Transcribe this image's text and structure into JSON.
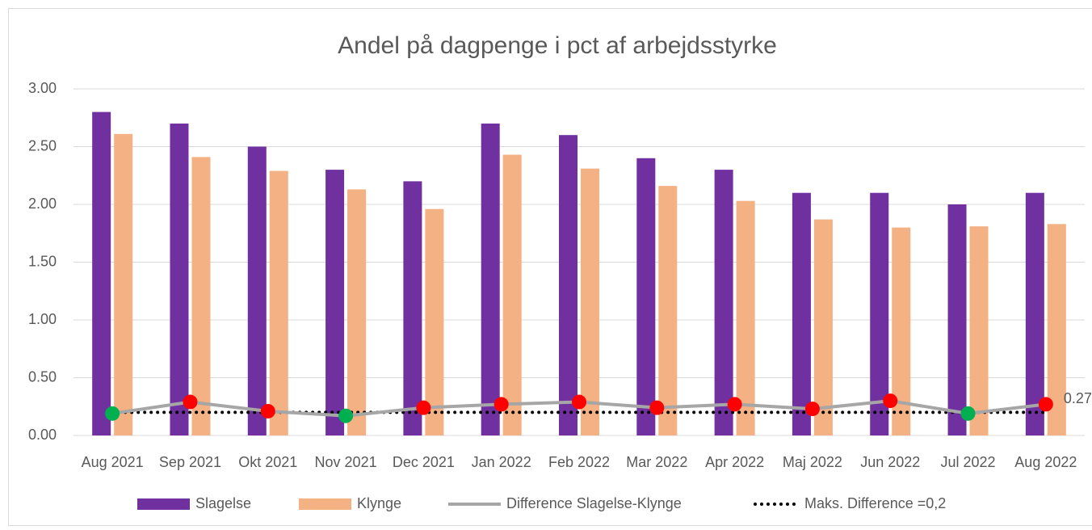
{
  "chart_data": {
    "type": "bar_line",
    "title": "Andel på dagpenge i pct af arbejdsstyrke",
    "categories": [
      "Aug 2021",
      "Sep 2021",
      "Okt 2021",
      "Nov 2021",
      "Dec 2021",
      "Jan 2022",
      "Feb 2022",
      "Mar 2022",
      "Apr 2022",
      "Maj 2022",
      "Jun 2022",
      "Jul 2022",
      "Aug 2022"
    ],
    "series": [
      {
        "name": "Slagelse",
        "kind": "bar",
        "color": "#7030a0",
        "values": [
          2.8,
          2.7,
          2.5,
          2.3,
          2.2,
          2.7,
          2.6,
          2.4,
          2.3,
          2.1,
          2.1,
          2.0,
          2.1
        ]
      },
      {
        "name": "Klynge",
        "kind": "bar",
        "color": "#f4b183",
        "values": [
          2.61,
          2.41,
          2.29,
          2.13,
          1.96,
          2.43,
          2.31,
          2.16,
          2.03,
          1.87,
          1.8,
          1.81,
          1.83
        ]
      },
      {
        "name": "Difference Slagelse-Klynge",
        "kind": "line",
        "color": "#a6a6a6",
        "values": [
          0.19,
          0.29,
          0.21,
          0.17,
          0.24,
          0.27,
          0.29,
          0.24,
          0.27,
          0.23,
          0.3,
          0.19,
          0.27
        ],
        "point_colors": [
          "#00b050",
          "#ff0000",
          "#ff0000",
          "#00b050",
          "#ff0000",
          "#ff0000",
          "#ff0000",
          "#ff0000",
          "#ff0000",
          "#ff0000",
          "#ff0000",
          "#00b050",
          "#ff0000"
        ]
      },
      {
        "name": "Maks. Difference =0,2",
        "kind": "dotted",
        "color": "#000000",
        "values": [
          0.2,
          0.2,
          0.2,
          0.2,
          0.2,
          0.2,
          0.2,
          0.2,
          0.2,
          0.2,
          0.2,
          0.2,
          0.2
        ]
      }
    ],
    "ylim": [
      0,
      3
    ],
    "yticks": [
      {
        "value": 0,
        "label": "0.00"
      },
      {
        "value": 0.5,
        "label": "0.50"
      },
      {
        "value": 1,
        "label": "1.00"
      },
      {
        "value": 1.5,
        "label": "1.50"
      },
      {
        "value": 2,
        "label": "2.00"
      },
      {
        "value": 2.5,
        "label": "2.50"
      },
      {
        "value": 3,
        "label": "3.00"
      }
    ],
    "grid": true,
    "legend": "bottom"
  }
}
